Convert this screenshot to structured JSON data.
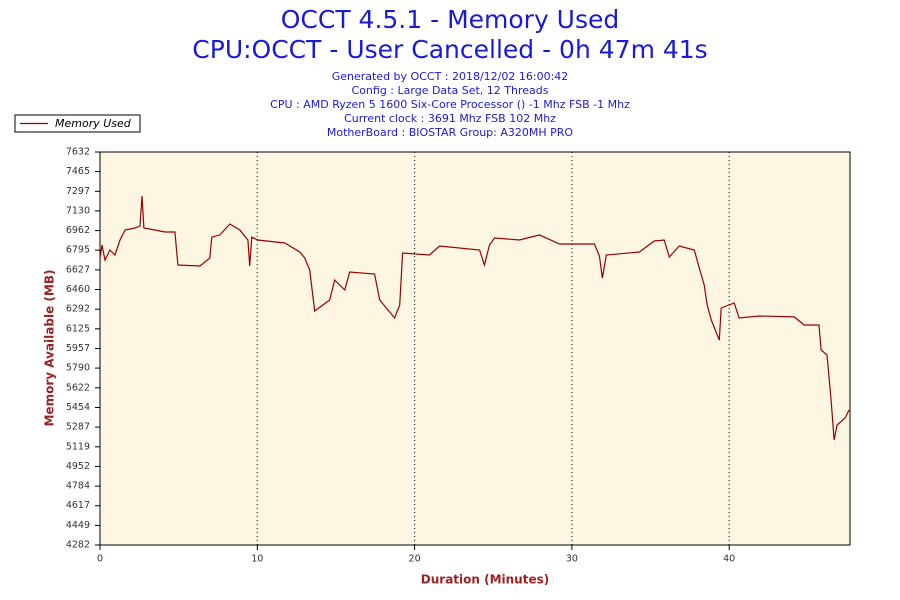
{
  "chart_data": {
    "type": "line",
    "title": "OCCT 4.5.1 - Memory Used",
    "subtitle": "CPU:OCCT - User Cancelled - 0h 47m 41s",
    "info": [
      "Generated by OCCT : 2018/12/02 16:00:42",
      "Config : Large Data Set, 12 Threads",
      "CPU : AMD Ryzen 5 1600 Six-Core Processor () -1 Mhz FSB -1 Mhz",
      "Current clock : 3691 Mhz FSB 102 Mhz",
      "MotherBoard : BIOSTAR Group: A320MH PRO"
    ],
    "x_label": "Duration (Minutes)",
    "y_label": "Memory Available (MB)",
    "x": [
      0.0,
      0.13,
      0.32,
      0.63,
      0.95,
      1.27,
      1.59,
      2.22,
      2.54,
      2.67,
      2.79,
      3.49,
      4.13,
      4.76,
      4.95,
      6.35,
      6.98,
      7.11,
      7.62,
      8.25,
      8.89,
      9.4,
      9.52,
      9.65,
      10.03,
      11.75,
      12.7,
      13.02,
      13.33,
      13.65,
      14.6,
      14.92,
      15.56,
      15.87,
      17.46,
      17.78,
      18.73,
      19.05,
      19.24,
      20.95,
      21.59,
      24.13,
      24.44,
      24.76,
      25.08,
      26.67,
      27.94,
      29.21,
      31.43,
      31.75,
      31.94,
      32.19,
      34.29,
      35.24,
      35.87,
      36.19,
      36.83,
      37.78,
      38.1,
      38.41,
      38.6,
      38.86,
      39.37,
      39.49,
      40.32,
      40.63,
      41.9,
      44.13,
      44.76,
      45.71,
      45.84,
      46.22,
      46.48,
      46.67,
      46.86,
      47.37,
      47.62
    ],
    "series": [
      {
        "name": "Memory Used",
        "color": "#990000",
        "values": [
          6728,
          6839,
          6711,
          6797,
          6754,
          6882,
          6967,
          6984,
          7001,
          7257,
          6984,
          6967,
          6950,
          6950,
          6669,
          6660,
          6728,
          6907,
          6925,
          7018,
          6967,
          6882,
          6660,
          6907,
          6882,
          6856,
          6780,
          6728,
          6626,
          6277,
          6370,
          6541,
          6456,
          6609,
          6592,
          6370,
          6217,
          6328,
          6771,
          6754,
          6831,
          6797,
          6669,
          6839,
          6899,
          6882,
          6925,
          6848,
          6848,
          6746,
          6558,
          6754,
          6780,
          6873,
          6882,
          6737,
          6831,
          6797,
          6643,
          6498,
          6328,
          6200,
          6029,
          6302,
          6345,
          6217,
          6234,
          6226,
          6157,
          6157,
          5944,
          5902,
          5518,
          5177,
          5305,
          5365,
          5433
        ]
      }
    ],
    "xlim": [
      0,
      47.68
    ],
    "ylim": [
      4282,
      7632
    ],
    "xticks": [
      0,
      10,
      20,
      30,
      40
    ],
    "yticks": [
      4282,
      4449,
      4617,
      4784,
      4952,
      5119,
      5287,
      5454,
      5622,
      5790,
      5957,
      6125,
      6292,
      6460,
      6627,
      6795,
      6962,
      7130,
      7297,
      7465,
      7632
    ],
    "grid": true,
    "background": "#fdf6e3"
  }
}
